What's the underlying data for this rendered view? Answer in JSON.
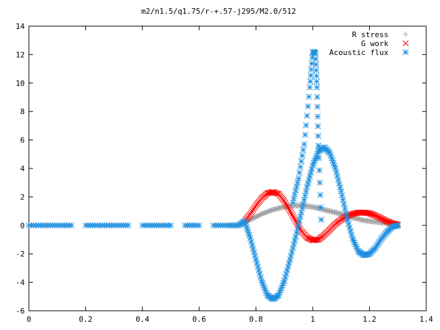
{
  "chart_data": {
    "type": "scatter",
    "title": "m2/n1.5/q1.75/r-+.57-j295/M2.0/512",
    "xlabel": "",
    "ylabel": "",
    "xlim": [
      0,
      1.4
    ],
    "ylim": [
      -6,
      14
    ],
    "xticks": [
      "0",
      "0.2",
      "0.4",
      "0.6",
      "0.8",
      "1",
      "1.2",
      "1.4"
    ],
    "yticks": [
      "-6",
      "-4",
      "-2",
      "0",
      "2",
      "4",
      "6",
      "8",
      "10",
      "12",
      "14"
    ],
    "grid": false,
    "legend_position": "top-right",
    "series": [
      {
        "name": "R stress",
        "marker": "plus",
        "color": "#a0a0a0",
        "x": [
          0.76,
          0.78,
          0.8,
          0.82,
          0.84,
          0.86,
          0.88,
          0.9,
          0.92,
          0.94,
          0.96,
          0.98,
          1.0,
          1.02,
          1.04,
          1.06,
          1.08,
          1.1,
          1.12,
          1.14,
          1.16,
          1.18,
          1.2,
          1.22,
          1.24,
          1.26,
          1.28,
          1.3
        ],
        "y": [
          0.2,
          0.4,
          0.6,
          0.8,
          0.95,
          1.1,
          1.2,
          1.3,
          1.35,
          1.4,
          1.4,
          1.35,
          1.3,
          1.2,
          1.1,
          1.0,
          0.9,
          0.8,
          0.65,
          0.55,
          0.45,
          0.35,
          0.3,
          0.25,
          0.2,
          0.15,
          0.1,
          0.05
        ]
      },
      {
        "name": "G work",
        "marker": "cross",
        "color": "#ff0000",
        "x": [
          0.76,
          0.78,
          0.8,
          0.82,
          0.84,
          0.86,
          0.88,
          0.9,
          0.92,
          0.94,
          0.96,
          0.98,
          1.0,
          1.02,
          1.04,
          1.06,
          1.08,
          1.1,
          1.12,
          1.14,
          1.16,
          1.18,
          1.2,
          1.22,
          1.24,
          1.26,
          1.28,
          1.3
        ],
        "y": [
          0.3,
          0.8,
          1.4,
          1.9,
          2.25,
          2.35,
          2.2,
          1.7,
          1.0,
          0.3,
          -0.4,
          -0.85,
          -1.05,
          -1.0,
          -0.7,
          -0.3,
          0.1,
          0.4,
          0.65,
          0.8,
          0.9,
          0.9,
          0.85,
          0.7,
          0.5,
          0.3,
          0.15,
          0.05
        ]
      },
      {
        "name": "Acoustic flux",
        "marker": "star",
        "color": "#1e90e0",
        "x": [
          0.0,
          0.05,
          0.1,
          0.15,
          0.2,
          0.25,
          0.3,
          0.35,
          0.4,
          0.45,
          0.5,
          0.55,
          0.6,
          0.65,
          0.7,
          0.74,
          0.76,
          0.78,
          0.8,
          0.82,
          0.84,
          0.86,
          0.88,
          0.9,
          0.92,
          0.94,
          0.96,
          0.98,
          1.0,
          1.02,
          1.04,
          1.06,
          1.08,
          1.1,
          1.12,
          1.14,
          1.16,
          1.18,
          1.2,
          1.22,
          1.24,
          1.26,
          1.28,
          1.3,
          0.93,
          0.95,
          0.97,
          0.99,
          1.0,
          1.01,
          1.015,
          1.02,
          1.03
        ],
        "y": [
          0,
          0,
          0,
          0,
          0,
          0,
          0,
          0,
          0,
          0,
          0,
          0,
          0,
          0,
          0,
          0.0,
          0.3,
          -0.9,
          -2.4,
          -3.9,
          -4.9,
          -5.2,
          -4.9,
          -3.9,
          -2.4,
          -0.8,
          0.9,
          2.7,
          4.2,
          5.2,
          5.5,
          5.1,
          4.0,
          2.4,
          0.6,
          -0.9,
          -1.8,
          -2.1,
          -2.0,
          -1.6,
          -1.0,
          -0.5,
          -0.1,
          0.0,
          1.6,
          3.3,
          5.7,
          9.7,
          12.2,
          12.1,
          9.7,
          5.6,
          0.4
        ]
      }
    ]
  }
}
